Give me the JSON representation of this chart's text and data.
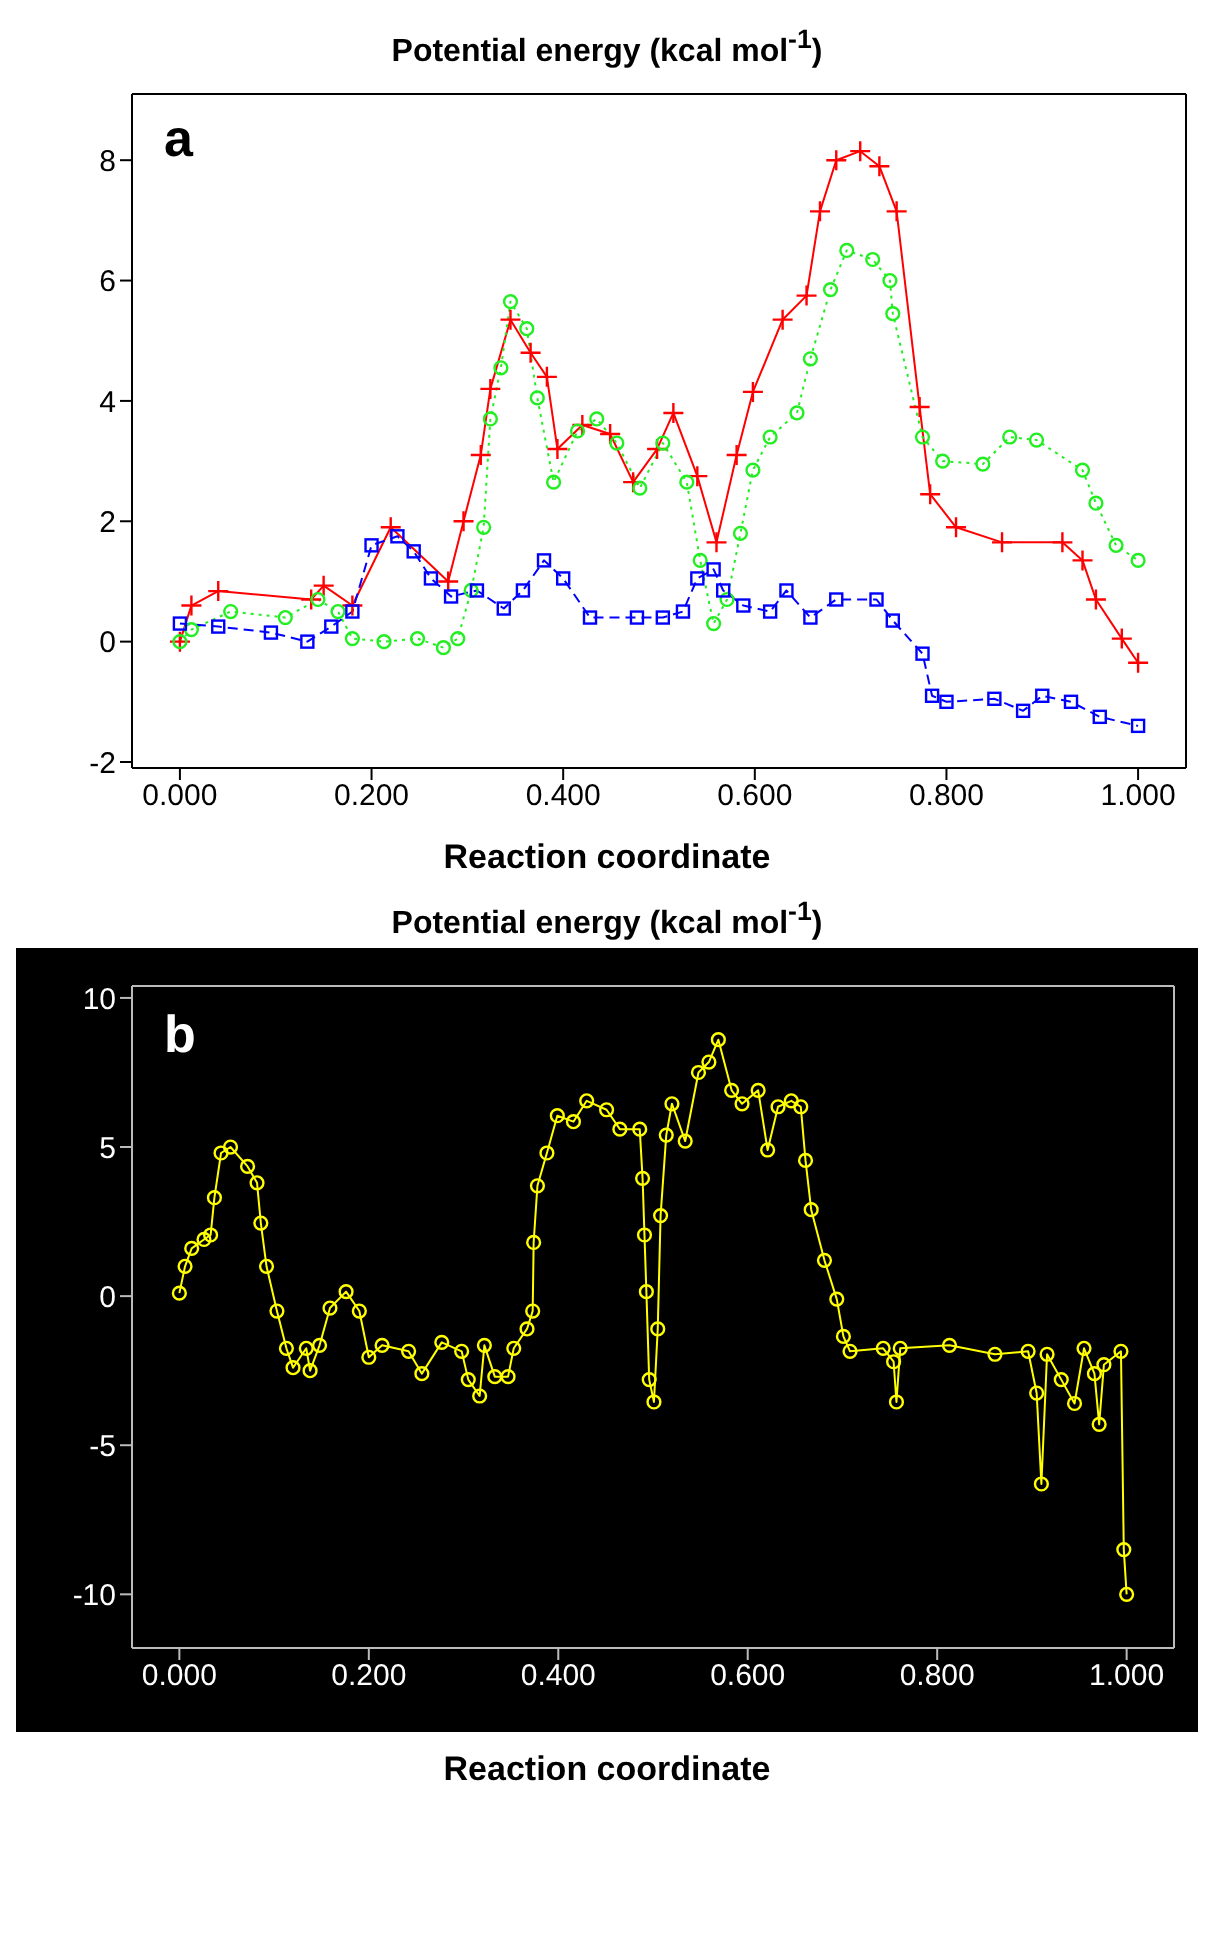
{
  "chart_data": [
    {
      "type": "line",
      "title": "Potential energy (kcal mol$^{-1}$)",
      "xlabel": "Reaction coordinate",
      "annotations": [
        "a"
      ],
      "xlim": [
        -0.05,
        1.05
      ],
      "ylim": [
        -2.1,
        9.1
      ],
      "xticks": [
        {
          "value": 0,
          "label": "0.000"
        },
        {
          "value": 0.2,
          "label": "0.200"
        },
        {
          "value": 0.4,
          "label": "0.400"
        },
        {
          "value": 0.6,
          "label": "0.600"
        },
        {
          "value": 0.8,
          "label": "0.800"
        },
        {
          "value": 1,
          "label": "1.000"
        }
      ],
      "yticks": [
        -2,
        0,
        2,
        4,
        6,
        8
      ],
      "series": [
        {
          "color": "#ff0000",
          "marker": "cross",
          "line_style": "solid",
          "x": [
            0,
            0.012,
            0.04,
            0.137,
            0.15,
            0.18,
            0.22,
            0.28,
            0.296,
            0.314,
            0.324,
            0.345,
            0.366,
            0.383,
            0.394,
            0.42,
            0.449,
            0.473,
            0.498,
            0.515,
            0.54,
            0.56,
            0.581,
            0.598,
            0.629,
            0.654,
            0.668,
            0.685,
            0.71,
            0.73,
            0.748,
            0.772,
            0.783,
            0.81,
            0.858,
            0.921,
            0.942,
            0.956,
            0.983,
            1.0
          ],
          "values": [
            0,
            0.6,
            0.84,
            0.7,
            0.93,
            0.6,
            1.9,
            1.0,
            2.0,
            3.1,
            4.2,
            5.35,
            4.8,
            4.4,
            3.2,
            3.6,
            3.45,
            2.65,
            3.2,
            3.8,
            2.75,
            1.65,
            3.1,
            4.15,
            5.35,
            5.75,
            7.15,
            8.0,
            8.15,
            7.9,
            7.15,
            3.9,
            2.45,
            1.9,
            1.65,
            1.65,
            1.35,
            0.7,
            0.05,
            -0.35
          ]
        },
        {
          "color": "#22ee22",
          "marker": "circle",
          "line_style": "dotted",
          "x": [
            0,
            0.012,
            0.053,
            0.11,
            0.144,
            0.165,
            0.18,
            0.213,
            0.248,
            0.275,
            0.29,
            0.304,
            0.317,
            0.324,
            0.335,
            0.345,
            0.362,
            0.373,
            0.39,
            0.415,
            0.435,
            0.456,
            0.48,
            0.504,
            0.529,
            0.543,
            0.557,
            0.571,
            0.585,
            0.598,
            0.616,
            0.644,
            0.658,
            0.679,
            0.696,
            0.723,
            0.741,
            0.744,
            0.775,
            0.796,
            0.838,
            0.866,
            0.894,
            0.942,
            0.956,
            0.977,
            1.0
          ],
          "values": [
            0,
            0.2,
            0.5,
            0.4,
            0.7,
            0.5,
            0.05,
            0,
            0.05,
            -0.1,
            0.05,
            0.85,
            1.9,
            3.7,
            4.55,
            5.65,
            5.2,
            4.05,
            2.65,
            3.5,
            3.7,
            3.3,
            2.55,
            3.3,
            2.65,
            1.35,
            0.3,
            0.7,
            1.8,
            2.85,
            3.4,
            3.8,
            4.7,
            5.85,
            6.5,
            6.35,
            6.0,
            5.45,
            3.4,
            3.0,
            2.95,
            3.4,
            3.35,
            2.85,
            2.3,
            1.6,
            1.35
          ]
        },
        {
          "color": "#0000ff",
          "marker": "square",
          "line_style": "dashed",
          "x": [
            0,
            0.04,
            0.095,
            0.133,
            0.158,
            0.18,
            0.2,
            0.227,
            0.244,
            0.262,
            0.283,
            0.31,
            0.338,
            0.358,
            0.38,
            0.4,
            0.428,
            0.477,
            0.504,
            0.525,
            0.54,
            0.557,
            0.567,
            0.588,
            0.616,
            0.633,
            0.658,
            0.685,
            0.727,
            0.744,
            0.775,
            0.785,
            0.8,
            0.85,
            0.88,
            0.9,
            0.93,
            0.96,
            1.0
          ],
          "values": [
            0.3,
            0.25,
            0.15,
            0,
            0.25,
            0.5,
            1.6,
            1.75,
            1.5,
            1.05,
            0.75,
            0.85,
            0.55,
            0.85,
            1.35,
            1.05,
            0.4,
            0.4,
            0.4,
            0.5,
            1.05,
            1.2,
            0.85,
            0.6,
            0.5,
            0.85,
            0.4,
            0.7,
            0.7,
            0.35,
            -0.2,
            -0.9,
            -1.0,
            -0.95,
            -1.15,
            -0.9,
            -1.0,
            -1.25,
            -1.4
          ]
        }
      ]
    },
    {
      "type": "line",
      "title": "Potential energy (kcal mol$^{-1}$)",
      "xlabel": "Reaction coordinate",
      "annotations": [
        "b"
      ],
      "xlim": [
        -0.05,
        1.05
      ],
      "ylim": [
        -11.8,
        10.4
      ],
      "xticks": [
        {
          "value": 0,
          "label": "0.000"
        },
        {
          "value": 0.2,
          "label": "0.200"
        },
        {
          "value": 0.4,
          "label": "0.400"
        },
        {
          "value": 0.6,
          "label": "0.600"
        },
        {
          "value": 0.8,
          "label": "0.800"
        },
        {
          "value": 1,
          "label": "1.000"
        }
      ],
      "yticks": [
        -10,
        -5,
        0,
        5,
        10
      ],
      "series": [
        {
          "color": "#ffff00",
          "marker": "circle",
          "line_style": "solid",
          "x": [
            0,
            0.006,
            0.013,
            0.026,
            0.033,
            0.037,
            0.044,
            0.054,
            0.072,
            0.082,
            0.086,
            0.092,
            0.103,
            0.113,
            0.12,
            0.134,
            0.138,
            0.148,
            0.159,
            0.176,
            0.19,
            0.2,
            0.214,
            0.242,
            0.256,
            0.277,
            0.298,
            0.305,
            0.317,
            0.322,
            0.333,
            0.347,
            0.353,
            0.367,
            0.373,
            0.374,
            0.378,
            0.388,
            0.399,
            0.416,
            0.43,
            0.451,
            0.465,
            0.486,
            0.489,
            0.491,
            0.493,
            0.496,
            0.501,
            0.505,
            0.508,
            0.514,
            0.52,
            0.534,
            0.548,
            0.559,
            0.569,
            0.583,
            0.594,
            0.611,
            0.621,
            0.632,
            0.646,
            0.656,
            0.661,
            0.667,
            0.681,
            0.694,
            0.701,
            0.708,
            0.743,
            0.754,
            0.757,
            0.761,
            0.813,
            0.861,
            0.896,
            0.905,
            0.91,
            0.916,
            0.931,
            0.945,
            0.955,
            0.966,
            0.971,
            0.976,
            0.994,
            0.997,
            1.0
          ],
          "values": [
            0.1,
            1.0,
            1.6,
            1.9,
            2.05,
            3.3,
            4.8,
            5.0,
            4.35,
            3.8,
            2.45,
            1.0,
            -0.5,
            -1.75,
            -2.4,
            -1.75,
            -2.5,
            -1.65,
            -0.4,
            0.15,
            -0.5,
            -2.05,
            -1.65,
            -1.85,
            -2.6,
            -1.55,
            -1.85,
            -2.8,
            -3.35,
            -1.65,
            -2.7,
            -2.7,
            -1.75,
            -1.1,
            -0.5,
            1.8,
            3.7,
            4.8,
            6.05,
            5.85,
            6.55,
            6.25,
            5.6,
            5.6,
            3.95,
            2.05,
            0.15,
            -2.8,
            -3.55,
            -1.1,
            2.7,
            5.4,
            6.45,
            5.2,
            7.5,
            7.85,
            8.6,
            6.9,
            6.45,
            6.9,
            4.9,
            6.35,
            6.55,
            6.35,
            4.55,
            2.9,
            1.2,
            -0.1,
            -1.35,
            -1.85,
            -1.75,
            -2.2,
            -3.55,
            -1.75,
            -1.65,
            -1.95,
            -1.85,
            -3.25,
            -6.3,
            -1.95,
            -2.8,
            -3.6,
            -1.75,
            -2.6,
            -4.3,
            -2.3,
            -1.85,
            -8.5,
            -10.0
          ]
        }
      ]
    }
  ]
}
